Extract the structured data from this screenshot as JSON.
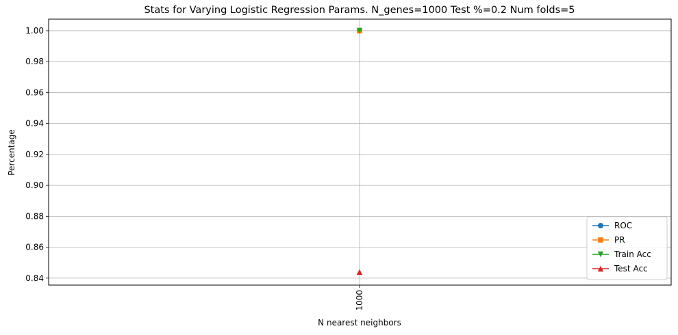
{
  "chart_data": {
    "type": "line",
    "title": "Stats for Varying Logistic Regression Params. N_genes=1000 Test %=0.2 Num folds=5",
    "xlabel": "N nearest neighbors",
    "ylabel": "Percentage",
    "x": [
      "1000"
    ],
    "ylim": [
      0.8355,
      1.0075
    ],
    "yticks": [
      "0.84",
      "0.86",
      "0.88",
      "0.90",
      "0.92",
      "0.94",
      "0.96",
      "0.98",
      "1.00"
    ],
    "grid": true,
    "legend_position": "lower-right",
    "series": [
      {
        "name": "ROC",
        "values": [
          1.0
        ],
        "color": "#1f77b4",
        "marker": "circle"
      },
      {
        "name": "PR",
        "values": [
          1.0
        ],
        "color": "#ff7f0e",
        "marker": "square"
      },
      {
        "name": "Train Acc",
        "values": [
          1.0
        ],
        "color": "#2ca02c",
        "marker": "triangle-down"
      },
      {
        "name": "Test Acc",
        "values": [
          0.844
        ],
        "color": "#d62728",
        "marker": "triangle-up"
      }
    ]
  }
}
